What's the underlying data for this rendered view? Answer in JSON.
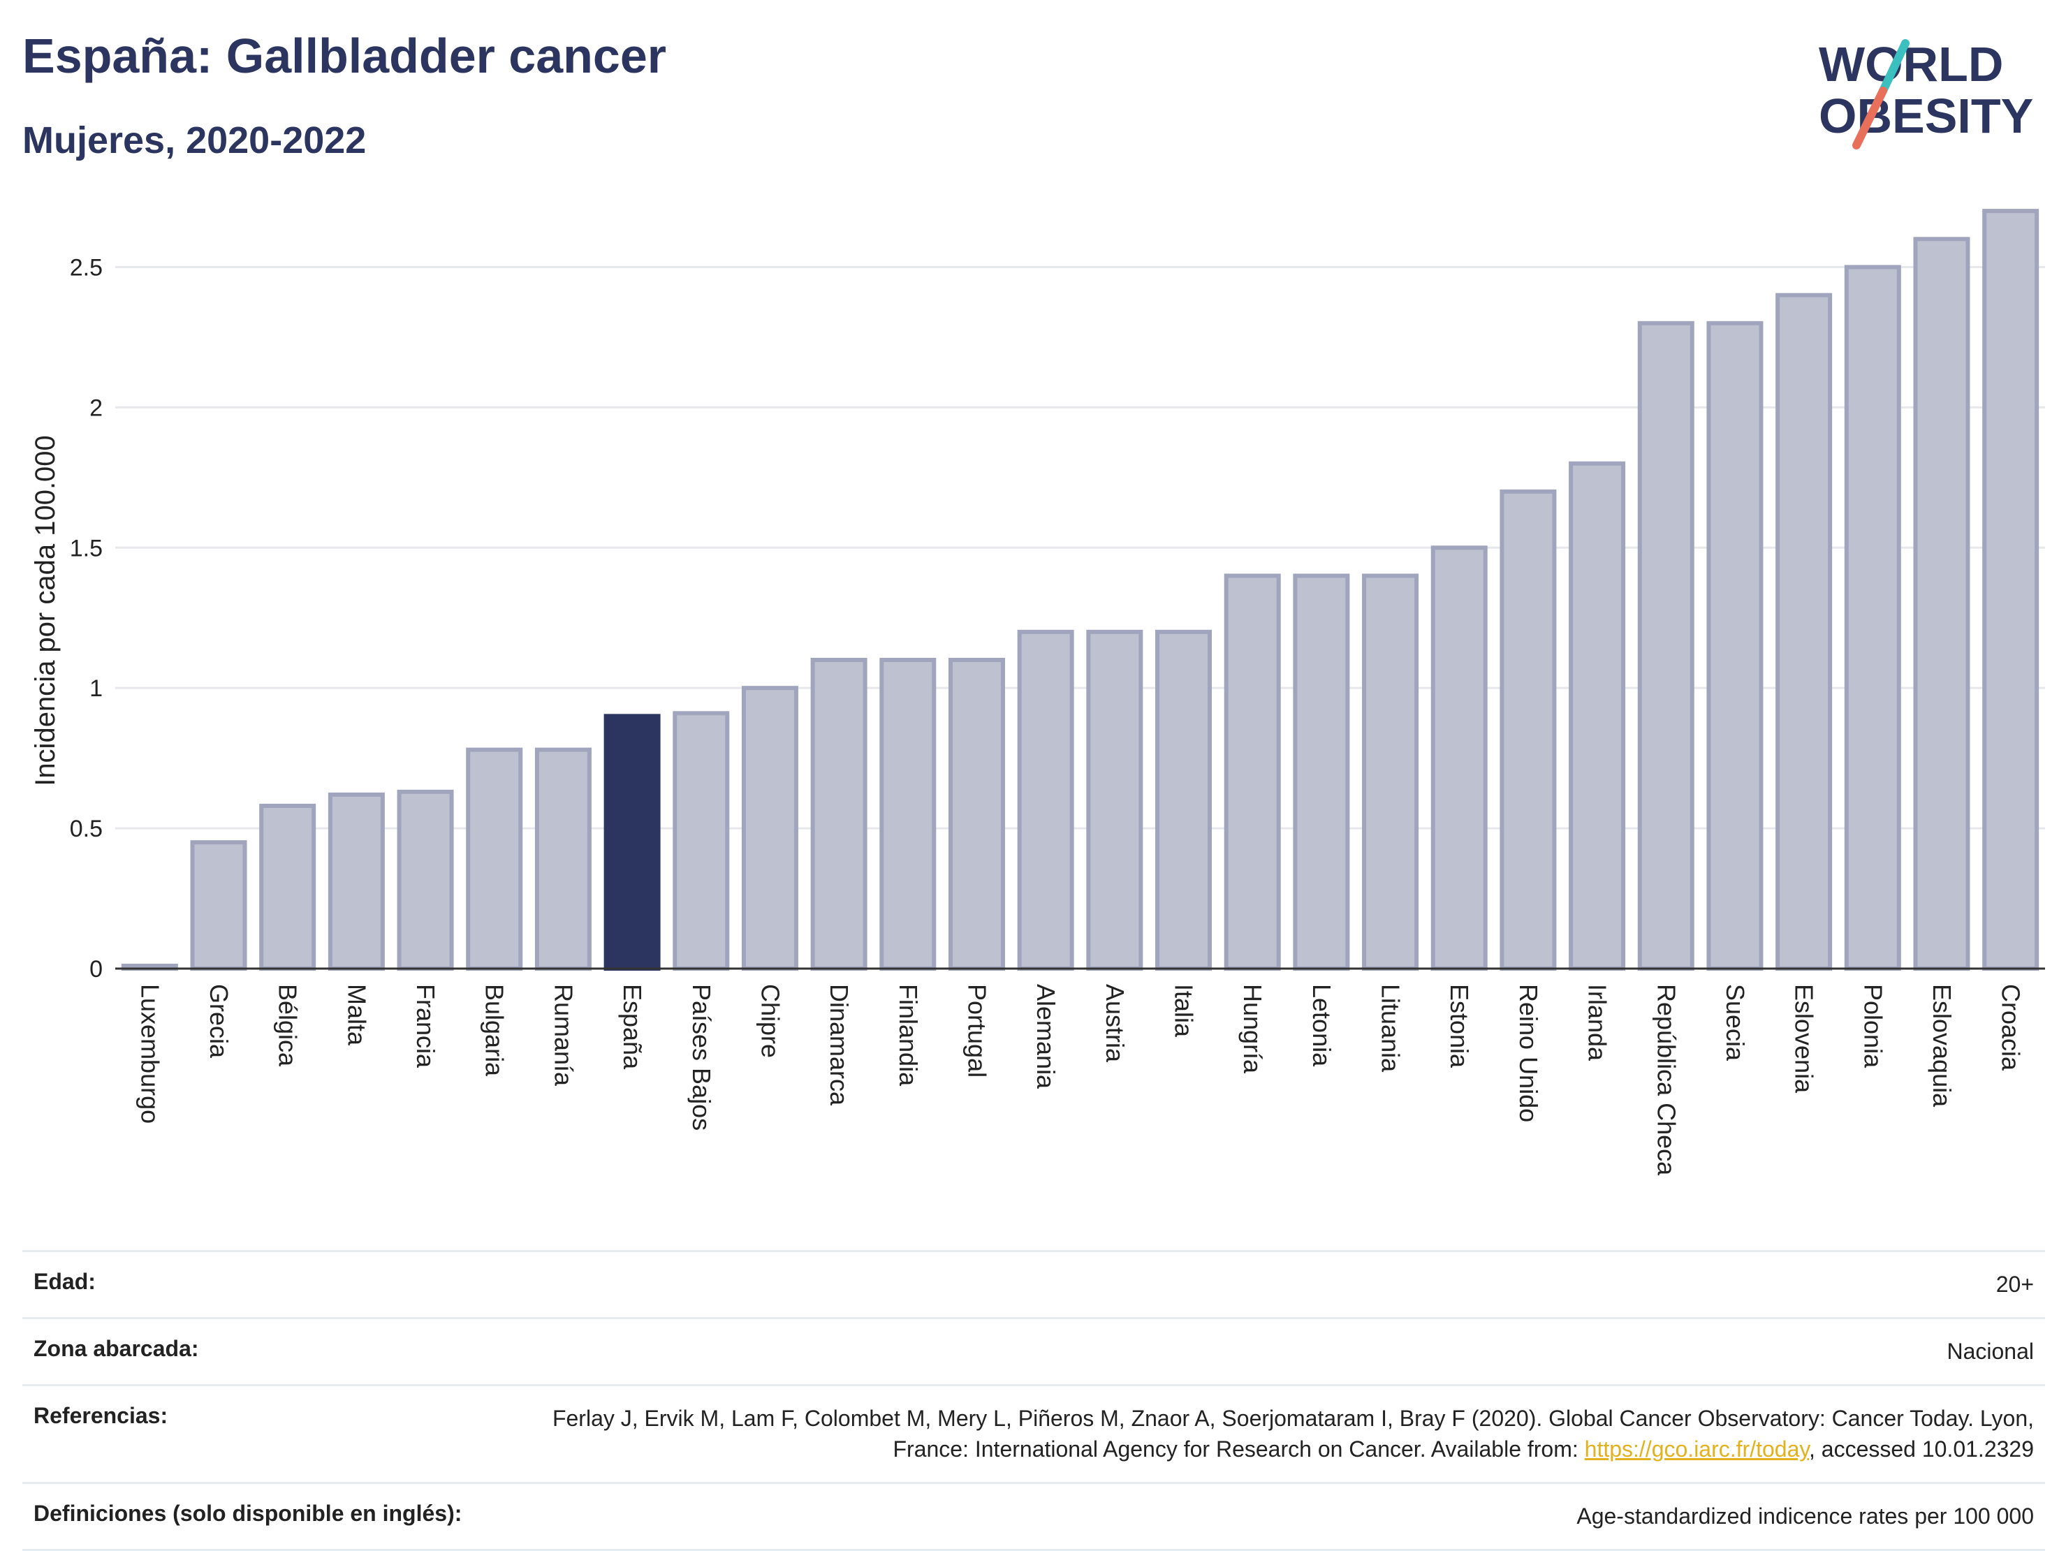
{
  "header": {
    "title": "España: Gallbladder cancer",
    "subtitle": "Mujeres, 2020-2022",
    "logo_line1": "WORLD",
    "logo_line2": "OBESITY"
  },
  "colors": {
    "highlight": "#2b3560",
    "bar_fill": "#bec1d0",
    "bar_stroke": "#a0a5bd",
    "grid": "#e6e8ec",
    "logo_teal": "#3bbfbf",
    "logo_coral": "#e8705a"
  },
  "chart_data": {
    "type": "bar",
    "ylabel": "Incidencia por cada 100.000",
    "ylim": [
      0,
      2.75
    ],
    "yticks": [
      0,
      0.5,
      1,
      1.5,
      2,
      2.5
    ],
    "ytick_labels": [
      "0",
      "0.5",
      "1",
      "1.5",
      "2",
      "2.5"
    ],
    "grid": true,
    "highlight_category": "España",
    "categories": [
      "Luxemburgo",
      "Grecia",
      "Bélgica",
      "Malta",
      "Francia",
      "Bulgaria",
      "Rumanía",
      "España",
      "Países Bajos",
      "Chipre",
      "Dinamarca",
      "Finlandia",
      "Portugal",
      "Alemania",
      "Austria",
      "Italia",
      "Hungría",
      "Letonia",
      "Lituania",
      "Estonia",
      "Reino Unido",
      "Irlanda",
      "República Checa",
      "Suecia",
      "Eslovenia",
      "Polonia",
      "Eslovaquia",
      "Croacia"
    ],
    "values": [
      0.01,
      0.45,
      0.58,
      0.62,
      0.63,
      0.78,
      0.78,
      0.9,
      0.91,
      1.0,
      1.1,
      1.1,
      1.1,
      1.2,
      1.2,
      1.2,
      1.4,
      1.4,
      1.4,
      1.5,
      1.7,
      1.8,
      2.3,
      2.3,
      2.4,
      2.5,
      2.6,
      2.7
    ]
  },
  "meta": {
    "age_label": "Edad:",
    "age_value": "20+",
    "zone_label": "Zona abarcada:",
    "zone_value": "Nacional",
    "ref_label": "Referencias:",
    "ref_text_1": "Ferlay J, Ervik M, Lam F, Colombet M, Mery L, Piñeros M, Znaor A, Soerjomataram I, Bray F (2020). Global Cancer Observatory: Cancer Today. Lyon, France: International Agency for Research on Cancer. Available from: ",
    "ref_link": "https://gco.iarc.fr/today",
    "ref_text_2": ", accessed 10.01.2329",
    "def_label": "Definiciones (solo disponible en inglés):",
    "def_value": "Age-standardized indicence rates per 100 000"
  }
}
